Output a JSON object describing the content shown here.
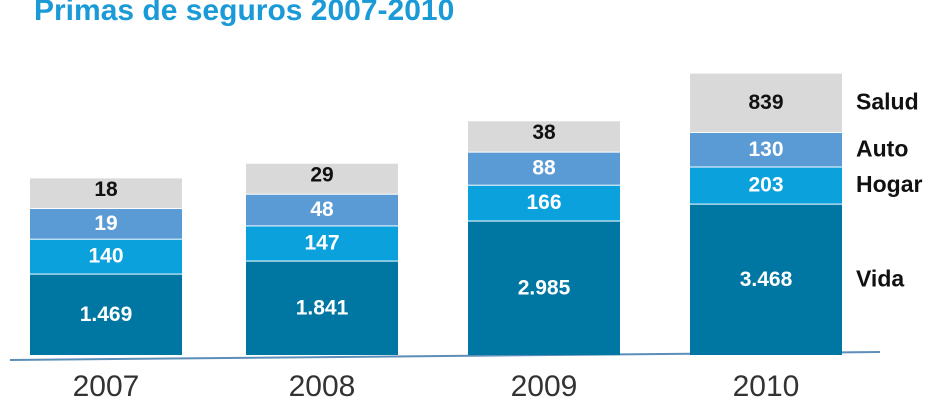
{
  "chart_data": {
    "type": "stacked_bar",
    "title": "Primas de seguros 2007-2010",
    "categories": [
      "2007",
      "2008",
      "2009",
      "2010"
    ],
    "series": [
      {
        "name": "Vida",
        "color": "#0077a3",
        "values": [
          1469,
          1841,
          2985,
          3468
        ],
        "value_labels": [
          "1.469",
          "1.841",
          "2.985",
          "3.468"
        ]
      },
      {
        "name": "Hogar",
        "color": "#0aa1dd",
        "values": [
          140,
          147,
          166,
          203
        ]
      },
      {
        "name": "Auto",
        "color": "#5b9bd5",
        "values": [
          19,
          48,
          88,
          130
        ]
      },
      {
        "name": "Salud",
        "color": "#d9d9d9",
        "values": [
          18,
          29,
          38,
          839
        ]
      }
    ]
  }
}
